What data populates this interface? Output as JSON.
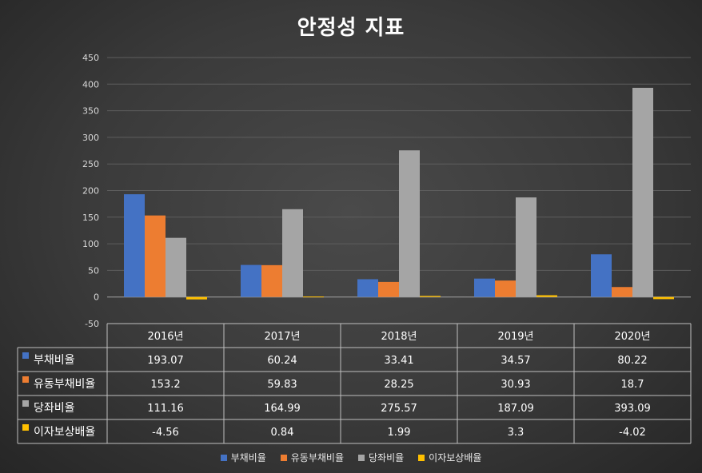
{
  "chart_data": {
    "type": "bar",
    "title": "안정성 지표",
    "categories": [
      "2016년",
      "2017년",
      "2018년",
      "2019년",
      "2020년"
    ],
    "ylim": [
      -50,
      450
    ],
    "yticks": [
      "450",
      "400",
      "350",
      "300",
      "250",
      "200",
      "150",
      "100",
      "50",
      "0",
      "-50"
    ],
    "grid": true,
    "legend_position": "bottom",
    "series": [
      {
        "name": "부채비율",
        "values": [
          193.07,
          60.24,
          33.41,
          34.57,
          80.22
        ],
        "labels": [
          "193.07",
          "60.24",
          "33.41",
          "34.57",
          "80.22"
        ],
        "color": "#4472C4"
      },
      {
        "name": "유동부채비율",
        "values": [
          153.2,
          59.83,
          28.25,
          30.93,
          18.7
        ],
        "labels": [
          "153.2",
          "59.83",
          "28.25",
          "30.93",
          "18.7"
        ],
        "color": "#ED7D31"
      },
      {
        "name": "당좌비율",
        "values": [
          111.16,
          164.99,
          275.57,
          187.09,
          393.09
        ],
        "labels": [
          "111.16",
          "164.99",
          "275.57",
          "187.09",
          "393.09"
        ],
        "color": "#A5A5A5"
      },
      {
        "name": "이자보상배율",
        "values": [
          -4.56,
          0.84,
          1.99,
          3.3,
          -4.02
        ],
        "labels": [
          "-4.56",
          "0.84",
          "1.99",
          "3.3",
          "-4.02"
        ],
        "color": "#FFC000"
      }
    ]
  }
}
